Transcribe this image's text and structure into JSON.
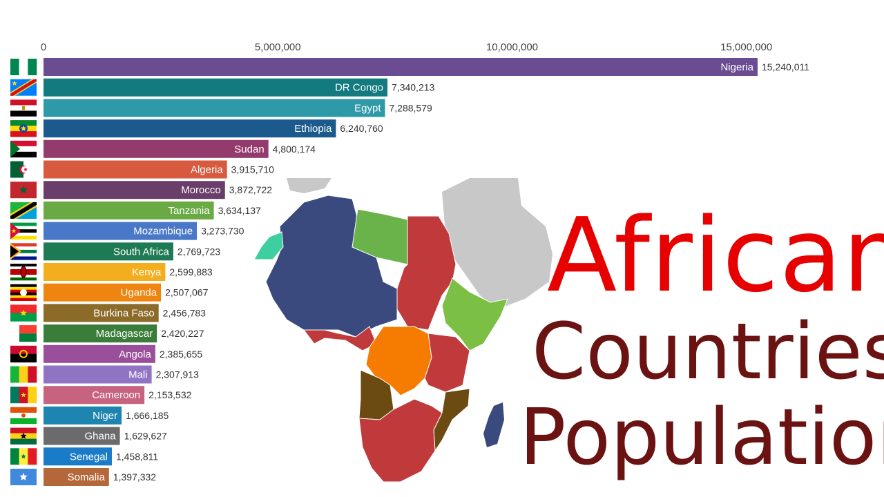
{
  "title": {
    "line1": "African",
    "line2": "Countries",
    "line3": "Population"
  },
  "chart_data": {
    "type": "bar",
    "orientation": "horizontal",
    "xlim": [
      0,
      15240011
    ],
    "x_ticks": [
      {
        "value": 0,
        "label": "0"
      },
      {
        "value": 5000000,
        "label": "5,000,000"
      },
      {
        "value": 10000000,
        "label": "10,000,000"
      },
      {
        "value": 15000000,
        "label": "15,000,000"
      }
    ],
    "grid": false,
    "legend": "none",
    "bars": [
      {
        "category": "Nigeria",
        "value": 15240011,
        "value_label": "15,240,011",
        "color": "#6a4c93",
        "flag": "nigeria"
      },
      {
        "category": "DR Congo",
        "value": 7340213,
        "value_label": "7,340,213",
        "color": "#137a7f",
        "flag": "dr-congo"
      },
      {
        "category": "Egypt",
        "value": 7288579,
        "value_label": "7,288,579",
        "color": "#2e9aa8",
        "flag": "egypt"
      },
      {
        "category": "Ethiopia",
        "value": 6240760,
        "value_label": "6,240,760",
        "color": "#1c5a8e",
        "flag": "ethiopia"
      },
      {
        "category": "Sudan",
        "value": 4800174,
        "value_label": "4,800,174",
        "color": "#943b6d",
        "flag": "sudan"
      },
      {
        "category": "Algeria",
        "value": 3915710,
        "value_label": "3,915,710",
        "color": "#d85a3e",
        "flag": "algeria"
      },
      {
        "category": "Morocco",
        "value": 3872722,
        "value_label": "3,872,722",
        "color": "#6a3e6a",
        "flag": "morocco"
      },
      {
        "category": "Tanzania",
        "value": 3634137,
        "value_label": "3,634,137",
        "color": "#6aaa44",
        "flag": "tanzania"
      },
      {
        "category": "Mozambique",
        "value": 3273730,
        "value_label": "3,273,730",
        "color": "#4a78c8",
        "flag": "mozambique"
      },
      {
        "category": "South Africa",
        "value": 2769723,
        "value_label": "2,769,723",
        "color": "#1e7a54",
        "flag": "south-africa"
      },
      {
        "category": "Kenya",
        "value": 2599883,
        "value_label": "2,599,883",
        "color": "#f2ae1c",
        "flag": "kenya"
      },
      {
        "category": "Uganda",
        "value": 2507067,
        "value_label": "2,507,067",
        "color": "#ee8510",
        "flag": "uganda"
      },
      {
        "category": "Burkina Faso",
        "value": 2456783,
        "value_label": "2,456,783",
        "color": "#8c6a28",
        "flag": "burkina-faso"
      },
      {
        "category": "Madagascar",
        "value": 2420227,
        "value_label": "2,420,227",
        "color": "#3a7d3a",
        "flag": "madagascar"
      },
      {
        "category": "Angola",
        "value": 2385655,
        "value_label": "2,385,655",
        "color": "#9a4f9a",
        "flag": "angola"
      },
      {
        "category": "Mali",
        "value": 2307913,
        "value_label": "2,307,913",
        "color": "#8f74c4",
        "flag": "mali"
      },
      {
        "category": "Cameroon",
        "value": 2153532,
        "value_label": "2,153,532",
        "color": "#c8637f",
        "flag": "cameroon"
      },
      {
        "category": "Niger",
        "value": 1666185,
        "value_label": "1,666,185",
        "color": "#1e85b0",
        "flag": "niger"
      },
      {
        "category": "Ghana",
        "value": 1629627,
        "value_label": "1,629,627",
        "color": "#6b6b6b",
        "flag": "ghana"
      },
      {
        "category": "Senegal",
        "value": 1458811,
        "value_label": "1,458,811",
        "color": "#1a7cc8",
        "flag": "senegal"
      },
      {
        "category": "Somalia",
        "value": 1397332,
        "value_label": "1,397,332",
        "color": "#b4683a",
        "flag": "somalia"
      }
    ]
  },
  "map": {
    "subject": "africa-map",
    "colors": {
      "northwest_blue": "#3b4a7e",
      "libya_green": "#6ab24a",
      "egypt_red": "#c0393b",
      "central_orange": "#f57c00",
      "angola_brown": "#6b4b12",
      "east_green": "#7bbf45",
      "outside_gray": "#c8c8c8",
      "coast_teal": "#3ecfa0"
    }
  }
}
